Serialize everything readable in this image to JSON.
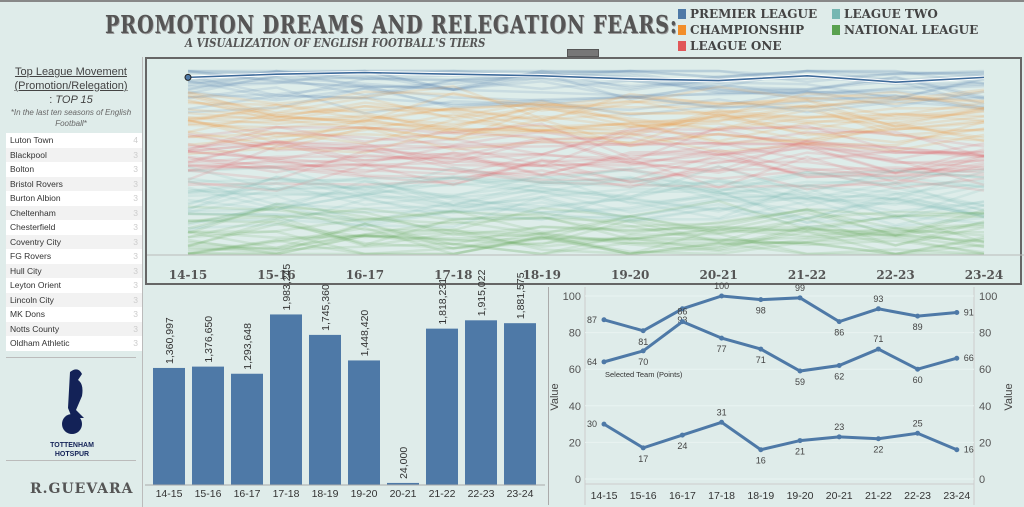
{
  "header": {
    "title": "PROMOTION DREAMS AND RELEGATION FEARS:",
    "subtitle": "A VISUALIZATION OF ENGLISH FOOTBALL'S TIERS"
  },
  "legend": [
    {
      "label": "PREMIER LEAGUE",
      "color": "#4e79a7"
    },
    {
      "label": "CHAMPIONSHIP",
      "color": "#f28e2b"
    },
    {
      "label": "LEAGUE ONE",
      "color": "#e15759"
    },
    {
      "label": "LEAGUE TWO",
      "color": "#76b7b2"
    },
    {
      "label": "NATIONAL LEAGUE",
      "color": "#59a14f"
    }
  ],
  "sidebar": {
    "heading1": "Top League Movement",
    "heading2": "(Promotion/Relegation)",
    "top_prefix": ": ",
    "top_label": "TOP 15",
    "note": "*In the last ten seasons of English Football*",
    "teams": [
      {
        "name": "Luton Town",
        "count": "4"
      },
      {
        "name": "Blackpool",
        "count": "3"
      },
      {
        "name": "Bolton",
        "count": "3"
      },
      {
        "name": "Bristol Rovers",
        "count": "3"
      },
      {
        "name": "Burton Albion",
        "count": "3"
      },
      {
        "name": "Cheltenham",
        "count": "3"
      },
      {
        "name": "Chesterfield",
        "count": "3"
      },
      {
        "name": "Coventry City",
        "count": "3"
      },
      {
        "name": "FG Rovers",
        "count": "3"
      },
      {
        "name": "Hull City",
        "count": "3"
      },
      {
        "name": "Leyton Orient",
        "count": "3"
      },
      {
        "name": "Lincoln City",
        "count": "3"
      },
      {
        "name": "MK Dons",
        "count": "3"
      },
      {
        "name": "Notts County",
        "count": "3"
      },
      {
        "name": "Oldham Athletic",
        "count": "3"
      }
    ],
    "logo_text": [
      "TOTTENHAM",
      "HOTSPUR"
    ],
    "author": "R.GUEVARA"
  },
  "chart_data": [
    {
      "type": "line",
      "subtype": "bump",
      "categories": [
        "14-15",
        "15-16",
        "16-17",
        "17-18",
        "18-19",
        "19-20",
        "20-21",
        "21-22",
        "22-23",
        "23-24"
      ],
      "highlight": {
        "ranks": [
          5,
          3,
          2,
          3,
          4,
          6,
          7,
          4,
          8,
          5
        ],
        "color": "#4e79a7"
      },
      "league_sizes": [
        20,
        24,
        24,
        24,
        24
      ],
      "yaxis": "rank (reversed)"
    },
    {
      "type": "bar",
      "categories": [
        "14-15",
        "15-16",
        "16-17",
        "17-18",
        "18-19",
        "19-20",
        "20-21",
        "21-22",
        "22-23",
        "23-24"
      ],
      "values": [
        1360997,
        1376650,
        1293648,
        1983245,
        1745360,
        1448420,
        24000,
        1818231,
        1915022,
        1881575
      ],
      "labels": [
        "1,360,997",
        "1,376,650",
        "1,293,648",
        "1,983,245",
        "1,745,360",
        "1,448,420",
        "24,000",
        "1,818,231",
        "1,915,022",
        "1,881,575"
      ],
      "color": "#4e79a7",
      "ylim": [
        0,
        2000000
      ]
    },
    {
      "type": "line",
      "categories": [
        "14-15",
        "15-16",
        "16-17",
        "17-18",
        "18-19",
        "19-20",
        "20-21",
        "21-22",
        "22-23",
        "23-24"
      ],
      "ylabel": "Value",
      "ylabel_right": "Value",
      "ylim": [
        0,
        100
      ],
      "yticks": [
        0,
        20,
        40,
        60,
        80,
        100
      ],
      "annotation": "Selected Team (Points)",
      "series": [
        {
          "values": [
            87,
            81,
            93,
            100,
            98,
            99,
            86,
            93,
            89,
            91
          ]
        },
        {
          "values": [
            64,
            70,
            86,
            77,
            71,
            59,
            62,
            71,
            60,
            66
          ]
        },
        {
          "values": [
            30,
            17,
            24,
            31,
            16,
            21,
            23,
            22,
            25,
            16
          ]
        }
      ],
      "color": "#4e79a7"
    }
  ]
}
